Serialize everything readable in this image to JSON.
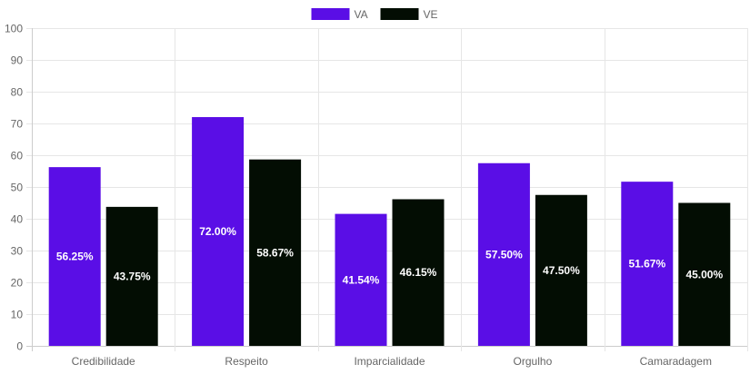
{
  "chart_data": {
    "type": "bar",
    "categories": [
      "Credibilidade",
      "Respeito",
      "Imparcialidade",
      "Orgulho",
      "Camaradagem"
    ],
    "series": [
      {
        "name": "VA",
        "color": "#5a0ee6",
        "values": [
          56.25,
          72.0,
          41.54,
          57.5,
          51.67
        ],
        "labels": [
          "56.25%",
          "72.00%",
          "41.54%",
          "57.50%",
          "51.67%"
        ]
      },
      {
        "name": "VE",
        "color": "#030d03",
        "values": [
          43.75,
          58.67,
          46.15,
          47.5,
          45.0
        ],
        "labels": [
          "43.75%",
          "58.67%",
          "46.15%",
          "47.50%",
          "45.00%"
        ]
      }
    ],
    "ylim": [
      0,
      100
    ],
    "yticks": [
      0,
      10,
      20,
      30,
      40,
      50,
      60,
      70,
      80,
      90,
      100
    ],
    "grid": true,
    "legend_position": "top-center",
    "title": "",
    "xlabel": "",
    "ylabel": ""
  }
}
